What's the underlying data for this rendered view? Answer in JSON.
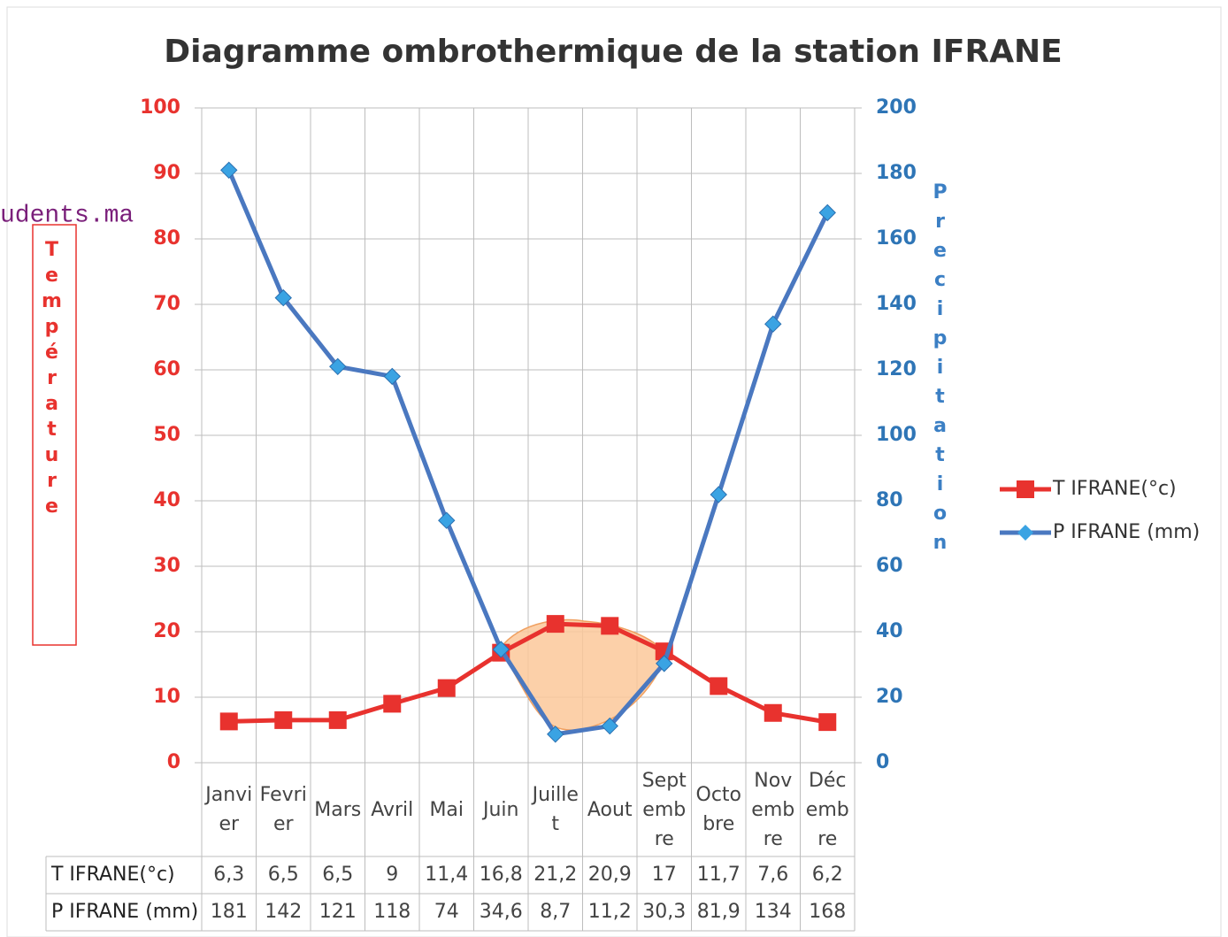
{
  "chart_data": {
    "type": "line",
    "title": "Diagramme ombrothermique de la station IFRANE",
    "watermark": "udents.ma",
    "ylabel": "Température",
    "y2label": "Precipitation",
    "categories": [
      "Janvier",
      "Fevrier",
      "Mars",
      "Avril",
      "Mai",
      "Juin",
      "Juillet",
      "Aout",
      "Septembre",
      "Octobre",
      "Novembre",
      "Décembre"
    ],
    "series": [
      {
        "name": "T IFRANE(°c)",
        "color": "#e8322e",
        "marker": "square",
        "axis": "y",
        "values": [
          6.3,
          6.5,
          6.5,
          9,
          11.4,
          16.8,
          21.2,
          20.9,
          17,
          11.7,
          7.6,
          6.2
        ],
        "value_labels": [
          "6,3",
          "6,5",
          "6,5",
          "9",
          "11,4",
          "16,8",
          "21,2",
          "20,9",
          "17",
          "11,7",
          "7,6",
          "6,2"
        ]
      },
      {
        "name": "P IFRANE (mm)",
        "color": "#4a78c0",
        "marker_color": "#3aa3e3",
        "marker": "diamond",
        "axis": "y2",
        "values": [
          181,
          142,
          121,
          118,
          74,
          34.6,
          8.7,
          11.2,
          30.3,
          81.9,
          134,
          168
        ],
        "value_labels": [
          "181",
          "142",
          "121",
          "118",
          "74",
          "34,6",
          "8,7",
          "11,2",
          "30,3",
          "81,9",
          "134",
          "168"
        ]
      }
    ],
    "ylim": [
      0,
      100
    ],
    "yticks": [
      0,
      10,
      20,
      30,
      40,
      50,
      60,
      70,
      80,
      90,
      100
    ],
    "y2lim": [
      0,
      200
    ],
    "y2ticks": [
      0,
      20,
      40,
      60,
      80,
      100,
      120,
      140,
      160,
      180,
      200
    ],
    "grid": true,
    "legend": "right"
  }
}
